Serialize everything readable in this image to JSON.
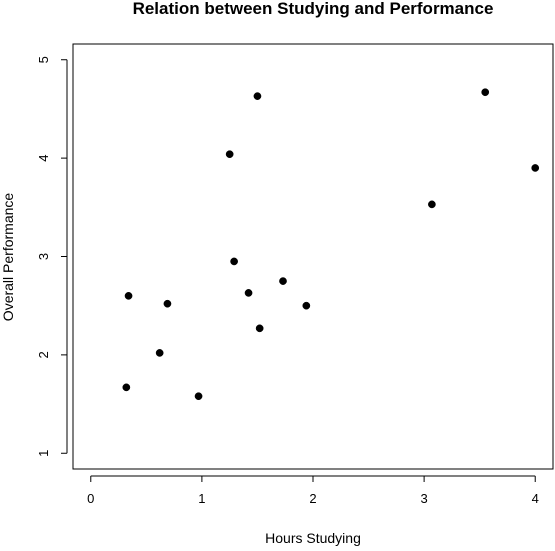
{
  "chart_data": {
    "type": "scatter",
    "title": "Relation between Studying and Performance",
    "xlabel": "Hours Studying",
    "ylabel": "Overall Performance",
    "xlim": [
      -0.16,
      4.16
    ],
    "ylim": [
      0.84,
      5.16
    ],
    "x_ticks": [
      0,
      1,
      2,
      3,
      4
    ],
    "y_ticks": [
      1,
      2,
      3,
      4,
      5
    ],
    "x_tick_labels": [
      "0",
      "1",
      "2",
      "3",
      "4"
    ],
    "y_tick_labels": [
      "1",
      "2",
      "3",
      "4",
      "5"
    ],
    "grid": false,
    "point_color": "#000000",
    "points": [
      {
        "x": 0.32,
        "y": 1.67
      },
      {
        "x": 0.34,
        "y": 2.6
      },
      {
        "x": 0.62,
        "y": 2.02
      },
      {
        "x": 0.69,
        "y": 2.52
      },
      {
        "x": 0.97,
        "y": 1.58
      },
      {
        "x": 1.25,
        "y": 4.04
      },
      {
        "x": 1.29,
        "y": 2.95
      },
      {
        "x": 1.42,
        "y": 2.63
      },
      {
        "x": 1.5,
        "y": 4.63
      },
      {
        "x": 1.52,
        "y": 2.27
      },
      {
        "x": 1.73,
        "y": 2.75
      },
      {
        "x": 1.94,
        "y": 2.5
      },
      {
        "x": 3.07,
        "y": 3.53
      },
      {
        "x": 3.55,
        "y": 4.67
      },
      {
        "x": 4.0,
        "y": 3.9
      }
    ]
  }
}
